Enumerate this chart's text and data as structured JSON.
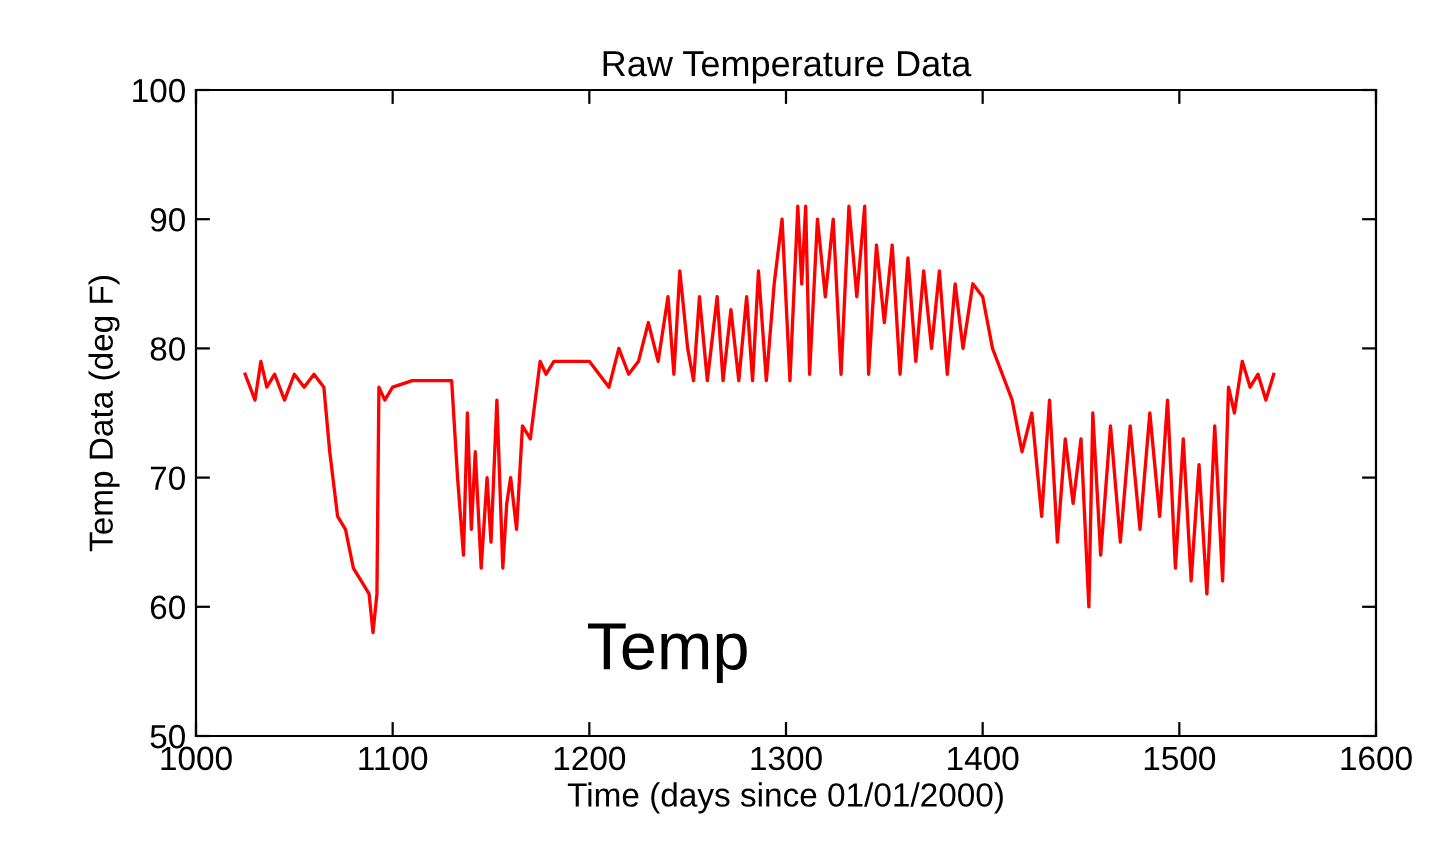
{
  "chart_data": {
    "type": "line",
    "title": "Raw Temperature Data",
    "xlabel": "Time (days since 01/01/2000)",
    "ylabel": "Temp Data (deg F)",
    "annotations": [
      "Temp"
    ],
    "x": [
      1025,
      1030,
      1033,
      1036,
      1040,
      1045,
      1050,
      1055,
      1060,
      1065,
      1068,
      1072,
      1076,
      1080,
      1084,
      1088,
      1090,
      1092,
      1093,
      1096,
      1100,
      1110,
      1120,
      1130,
      1133,
      1136,
      1138,
      1140,
      1142,
      1145,
      1148,
      1150,
      1153,
      1156,
      1158,
      1160,
      1163,
      1166,
      1170,
      1175,
      1178,
      1182,
      1190,
      1200,
      1205,
      1210,
      1215,
      1220,
      1225,
      1230,
      1235,
      1240,
      1243,
      1246,
      1250,
      1253,
      1256,
      1260,
      1265,
      1268,
      1272,
      1276,
      1280,
      1283,
      1286,
      1290,
      1294,
      1298,
      1302,
      1306,
      1308,
      1310,
      1312,
      1316,
      1320,
      1324,
      1328,
      1332,
      1336,
      1340,
      1342,
      1346,
      1350,
      1354,
      1358,
      1362,
      1366,
      1370,
      1374,
      1378,
      1382,
      1386,
      1390,
      1395,
      1400,
      1405,
      1410,
      1415,
      1420,
      1425,
      1430,
      1434,
      1438,
      1442,
      1446,
      1450,
      1454,
      1456,
      1460,
      1465,
      1470,
      1475,
      1480,
      1485,
      1490,
      1494,
      1498,
      1502,
      1506,
      1510,
      1514,
      1518,
      1522,
      1525,
      1528,
      1532,
      1536,
      1540,
      1544,
      1548
    ],
    "series": [
      {
        "color": "#ff0000",
        "values": [
          78,
          76,
          79,
          77,
          78,
          76,
          78,
          77,
          78,
          77,
          72,
          67,
          66,
          63,
          62,
          61,
          58,
          61,
          77,
          76,
          77,
          77.5,
          77.5,
          77.5,
          70,
          64,
          75,
          66,
          72,
          63,
          70,
          65,
          76,
          63,
          68,
          70,
          66,
          74,
          73,
          79,
          78,
          79,
          79,
          79,
          78,
          77,
          80,
          78,
          79,
          82,
          79,
          84,
          78,
          86,
          80,
          77.5,
          84,
          77.5,
          84,
          77.5,
          83,
          77.5,
          84,
          77.5,
          86,
          77.5,
          85,
          90,
          77.5,
          91,
          85,
          91,
          78,
          90,
          84,
          90,
          78,
          91,
          84,
          91,
          78,
          88,
          82,
          88,
          78,
          87,
          79,
          86,
          80,
          86,
          78,
          85,
          80,
          85,
          84,
          80,
          78,
          76,
          72,
          75,
          67,
          76,
          65,
          73,
          68,
          73,
          60,
          75,
          64,
          74,
          65,
          74,
          66,
          75,
          67,
          76,
          63,
          73,
          62,
          71,
          61,
          74,
          62,
          77,
          75,
          79,
          77,
          78,
          76,
          78
        ]
      }
    ],
    "xlim": [
      1000,
      1600
    ],
    "ylim": [
      50,
      100
    ],
    "xticks": [
      1000,
      1100,
      1200,
      1300,
      1400,
      1500,
      1600
    ],
    "yticks": [
      50,
      60,
      70,
      80,
      90,
      100
    ],
    "grid": false,
    "legend": false,
    "marker": "none",
    "line_style": "solid"
  }
}
